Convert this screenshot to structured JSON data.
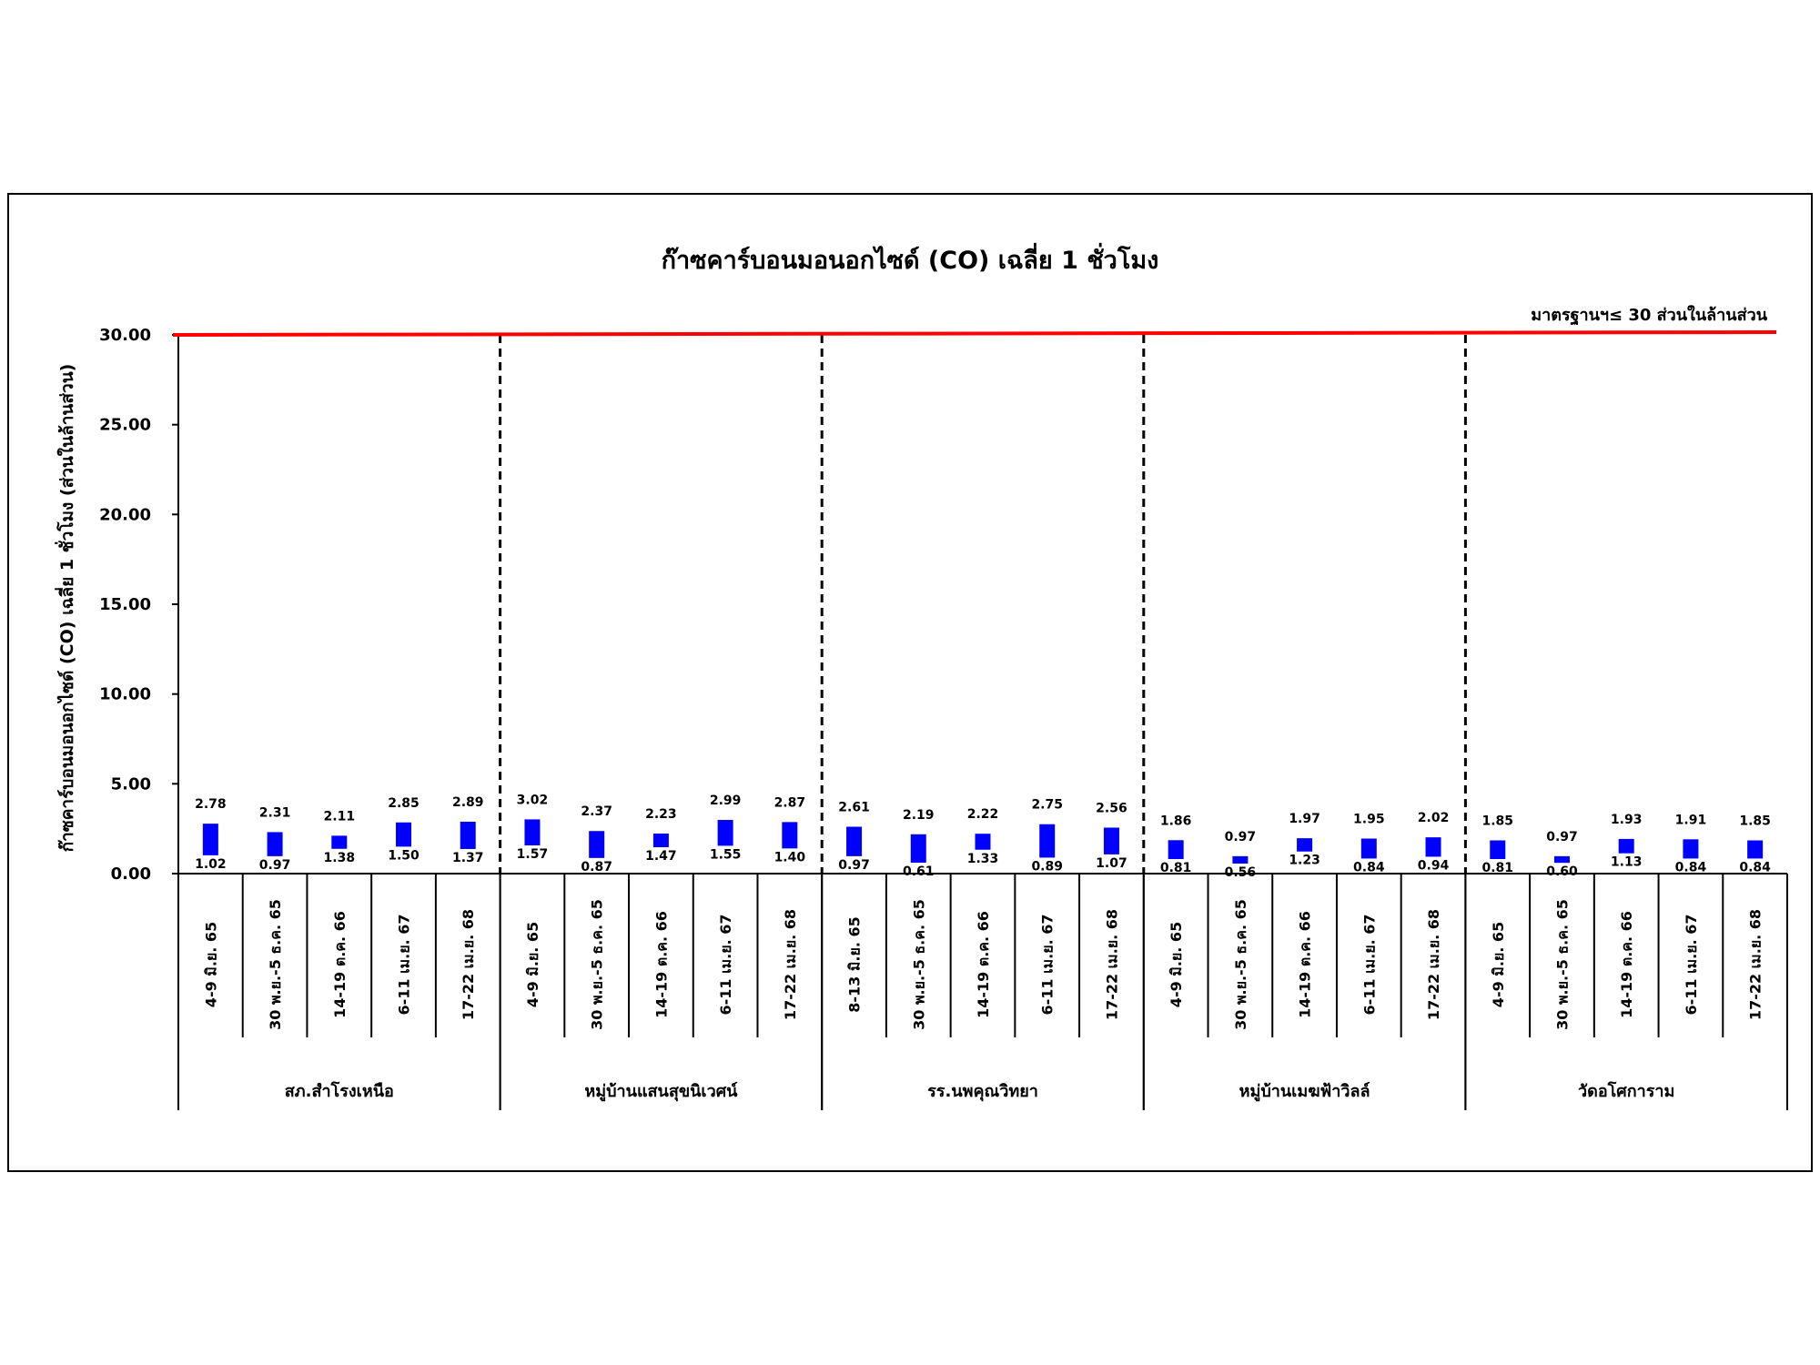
{
  "chart_data": {
    "type": "bar",
    "bar_style": "floating-range",
    "title": "ก๊าซคาร์บอนมอนอกไซด์ (CO) เฉลี่ย 1 ชั่วโมง",
    "ylabel": "ก๊าซคาร์บอนมอนอกไซด์ (CO) เฉลี่ย 1 ชั่วโมง (ส่วนในล้านส่วน)",
    "xlabel": "",
    "ylim": [
      0,
      30
    ],
    "yticks": [
      "0.00",
      "5.00",
      "10.00",
      "15.00",
      "20.00",
      "25.00",
      "30.00"
    ],
    "grid": false,
    "legend": "none",
    "colors": {
      "bar": "#0000ff",
      "standard_line": "#ff0000",
      "axis": "#000000"
    },
    "standard": {
      "value": 30,
      "label": "มาตรฐานฯ≤ 30 ส่วนในล้านส่วน"
    },
    "groups": [
      {
        "name": "สภ.สำโรงเหนือ",
        "categories": [
          "4-9 มิ.ย. 65",
          "30 พ.ย.-5 ธ.ค. 65",
          "14-19 ต.ค. 66",
          "6-11 เม.ย. 67",
          "17-22 เม.ย. 68"
        ],
        "max": [
          2.78,
          2.31,
          2.11,
          2.85,
          2.89
        ],
        "min": [
          1.02,
          0.97,
          1.38,
          1.5,
          1.37
        ],
        "max_labels": [
          "2.78",
          "2.31",
          "2.11",
          "2.85",
          "2.89"
        ],
        "min_labels": [
          "1.02",
          "0.97",
          "1.38",
          "1.50",
          "1.37"
        ]
      },
      {
        "name": "หมู่บ้านแสนสุขนิเวศน์",
        "categories": [
          "4-9 มิ.ย. 65",
          "30 พ.ย.-5 ธ.ค. 65",
          "14-19 ต.ค. 66",
          "6-11 เม.ย. 67",
          "17-22 เม.ย. 68"
        ],
        "max": [
          3.02,
          2.37,
          2.23,
          2.99,
          2.87
        ],
        "min": [
          1.57,
          0.87,
          1.47,
          1.55,
          1.4
        ],
        "max_labels": [
          "3.02",
          "2.37",
          "2.23",
          "2.99",
          "2.87"
        ],
        "min_labels": [
          "1.57",
          "0.87",
          "1.47",
          "1.55",
          "1.40"
        ]
      },
      {
        "name": "รร.นพคุณวิทยา",
        "categories": [
          "8-13 มิ.ย. 65",
          "30 พ.ย.-5 ธ.ค. 65",
          "14-19 ต.ค. 66",
          "6-11 เม.ย. 67",
          "17-22 เม.ย. 68"
        ],
        "max": [
          2.61,
          2.19,
          2.22,
          2.75,
          2.56
        ],
        "min": [
          0.97,
          0.61,
          1.33,
          0.89,
          1.07
        ],
        "max_labels": [
          "2.61",
          "2.19",
          "2.22",
          "2.75",
          "2.56"
        ],
        "min_labels": [
          "0.97",
          "0.61",
          "1.33",
          "0.89",
          "1.07"
        ]
      },
      {
        "name": "หมู่บ้านเมฆฟ้าวิลล์",
        "categories": [
          "4-9 มิ.ย. 65",
          "30 พ.ย.-5 ธ.ค. 65",
          "14-19 ต.ค. 66",
          "6-11 เม.ย. 67",
          "17-22 เม.ย. 68"
        ],
        "max": [
          1.86,
          0.97,
          1.97,
          1.95,
          2.02
        ],
        "min": [
          0.81,
          0.56,
          1.23,
          0.84,
          0.94
        ],
        "max_labels": [
          "1.86",
          "0.97",
          "1.97",
          "1.95",
          "2.02"
        ],
        "min_labels": [
          "0.81",
          "0.56",
          "1.23",
          "0.84",
          "0.94"
        ]
      },
      {
        "name": "วัดอโศการาม",
        "categories": [
          "4-9 มิ.ย. 65",
          "30 พ.ย.-5 ธ.ค. 65",
          "14-19 ต.ค. 66",
          "6-11 เม.ย. 67",
          "17-22 เม.ย. 68"
        ],
        "max": [
          1.85,
          0.97,
          1.93,
          1.91,
          1.85
        ],
        "min": [
          0.81,
          0.6,
          1.13,
          0.84,
          0.84
        ],
        "max_labels": [
          "1.85",
          "0.97",
          "1.93",
          "1.91",
          "1.85"
        ],
        "min_labels": [
          "0.81",
          "0.60",
          "1.13",
          "0.84",
          "0.84"
        ]
      }
    ]
  }
}
